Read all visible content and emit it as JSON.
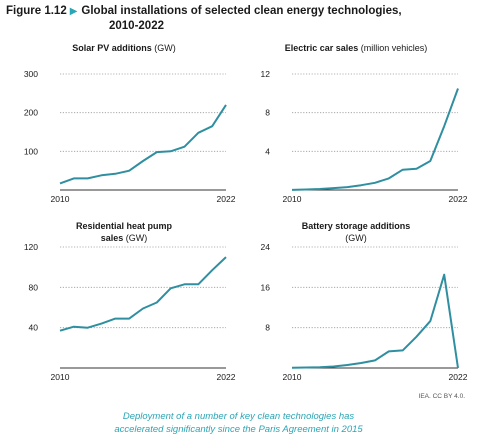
{
  "figure": {
    "number": "Figure 1.12",
    "title_line1": "Global installations of selected clean energy technologies,",
    "title_line2": "2010-2022"
  },
  "source": "IEA. CC BY 4.0.",
  "caption": {
    "line1": "Deployment of a number of key clean technologies has",
    "line2": "accelerated significantly since the Paris Agreement in 2015"
  },
  "colors": {
    "line": "#2f8fa0",
    "accent": "#2aa6b5",
    "grid": "#9a9a9a"
  },
  "chart_data": [
    {
      "type": "line",
      "title": "Solar PV additions",
      "unit": "(GW)",
      "x": [
        2010,
        2011,
        2012,
        2013,
        2014,
        2015,
        2016,
        2017,
        2018,
        2019,
        2020,
        2021,
        2022
      ],
      "series": [
        {
          "values": [
            17,
            30,
            30,
            38,
            42,
            50,
            75,
            98,
            100,
            112,
            148,
            165,
            220
          ]
        }
      ],
      "ylim": [
        0,
        300
      ],
      "yticks": [
        100,
        200,
        300
      ],
      "xticks": [
        "2010",
        "2022"
      ],
      "grid": true
    },
    {
      "type": "line",
      "title": "Electric car sales",
      "unit": "(million vehicles)",
      "x": [
        2010,
        2011,
        2012,
        2013,
        2014,
        2015,
        2016,
        2017,
        2018,
        2019,
        2020,
        2021,
        2022
      ],
      "series": [
        {
          "values": [
            0.01,
            0.05,
            0.1,
            0.2,
            0.3,
            0.5,
            0.75,
            1.2,
            2.1,
            2.2,
            3.0,
            6.6,
            10.5
          ]
        }
      ],
      "ylim": [
        0,
        12
      ],
      "yticks": [
        4,
        8,
        12
      ],
      "xticks": [
        "2010",
        "2022"
      ],
      "grid": true
    },
    {
      "type": "line",
      "title": "Residential heat pump",
      "title_line2": "sales",
      "unit": "(GW)",
      "x": [
        2010,
        2011,
        2012,
        2013,
        2014,
        2015,
        2016,
        2017,
        2018,
        2019,
        2020,
        2021,
        2022
      ],
      "series": [
        {
          "values": [
            37,
            41,
            40,
            44,
            49,
            49,
            59,
            65,
            79,
            83,
            83,
            97,
            110
          ]
        }
      ],
      "ylim": [
        0,
        120
      ],
      "yticks": [
        40,
        80,
        120
      ],
      "xticks": [
        "2010",
        "2022"
      ],
      "grid": true
    },
    {
      "type": "line",
      "title": "Battery storage additions",
      "unit": "(GW)",
      "x": [
        2010,
        2011,
        2012,
        2013,
        2014,
        2015,
        2016,
        2017,
        2018,
        2019,
        2020,
        2021,
        2022
      ],
      "series": [
        {
          "values": [
            0.05,
            0.1,
            0.15,
            0.3,
            0.6,
            1.0,
            1.5,
            3.3,
            3.5,
            6.2,
            9.3,
            18.5,
            0
          ]
        }
      ],
      "ylim": [
        0,
        24
      ],
      "yticks": [
        8,
        16,
        24
      ],
      "xticks": [
        "2010",
        "2022"
      ],
      "grid": true
    }
  ]
}
